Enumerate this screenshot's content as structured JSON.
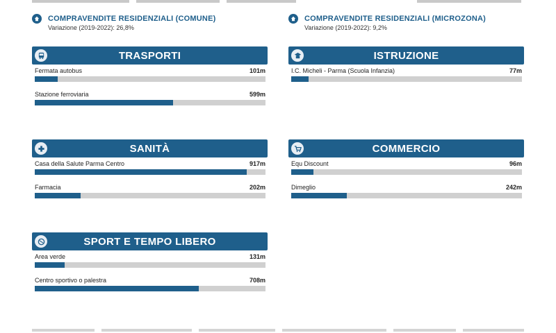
{
  "stats": [
    {
      "title": "COMPRAVENDITE RESIDENZIALI (COMUNE)",
      "subtitle": "Variazione (2019-2022): 26,8%"
    },
    {
      "title": "COMPRAVENDITE RESIDENZIALI (MICROZONA)",
      "subtitle": "Variazione (2019-2022): 9,2%"
    }
  ],
  "categories": [
    {
      "title": "TRASPORTI",
      "icon": "bus-icon",
      "items": [
        {
          "name": "Fermata autobus",
          "distance": "101m",
          "fill": 0.1
        },
        {
          "name": "Stazione ferroviaria",
          "distance": "599m",
          "fill": 0.6
        }
      ]
    },
    {
      "title": "ISTRUZIONE",
      "icon": "school-icon",
      "items": [
        {
          "name": "I.C. Micheli - Parma (Scuola Infanzia)",
          "distance": "77m",
          "fill": 0.075
        }
      ]
    },
    {
      "title": "SANITÀ",
      "icon": "health-icon",
      "items": [
        {
          "name": "Casa della Salute Parma Centro",
          "distance": "917m",
          "fill": 0.92
        },
        {
          "name": "Farmacia",
          "distance": "202m",
          "fill": 0.2
        }
      ]
    },
    {
      "title": "COMMERCIO",
      "icon": "cart-icon",
      "items": [
        {
          "name": "Equ Discount",
          "distance": "96m",
          "fill": 0.095
        },
        {
          "name": "Dimeglio",
          "distance": "242m",
          "fill": 0.24
        }
      ]
    },
    {
      "title": "SPORT E TEMPO LIBERO",
      "icon": "leisure-icon",
      "items": [
        {
          "name": "Area verde",
          "distance": "131m",
          "fill": 0.13
        },
        {
          "name": "Centro sportivo o palestra",
          "distance": "708m",
          "fill": 0.71
        }
      ]
    }
  ],
  "colors": {
    "accent": "#1f5f8b",
    "track": "#d0d0d0"
  }
}
